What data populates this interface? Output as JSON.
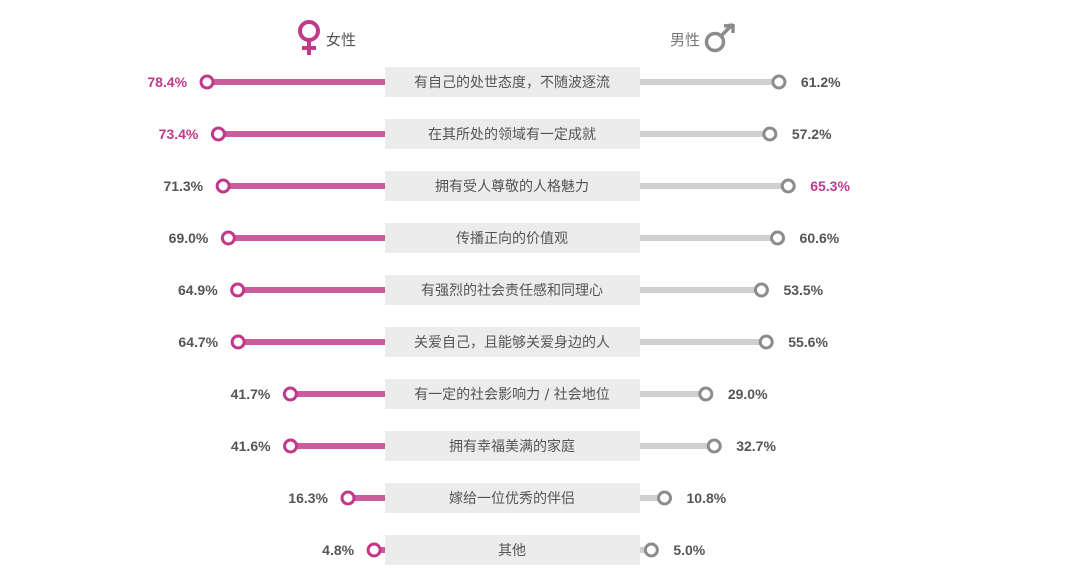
{
  "chart_data": {
    "type": "bar",
    "legend": {
      "female": "女性",
      "male": "男性"
    },
    "categories": [
      "有自己的处世态度，不随波逐流",
      "在其所处的领域有一定成就",
      "拥有受人尊敬的人格魅力",
      "传播正向的价值观",
      "有强烈的社会责任感和同理心",
      "关爱自己，且能够关爱身边的人",
      "有一定的社会影响力 / 社会地位",
      "拥有幸福美满的家庭",
      "嫁给一位优秀的伴侣",
      "其他"
    ],
    "series": [
      {
        "name": "女性",
        "values": [
          78.4,
          73.4,
          71.3,
          69.0,
          64.9,
          64.7,
          41.7,
          41.6,
          16.3,
          4.8
        ],
        "labels": [
          "78.4%",
          "73.4%",
          "71.3%",
          "69.0%",
          "64.9%",
          "64.7%",
          "41.7%",
          "41.6%",
          "16.3%",
          "4.8%"
        ],
        "highlight": [
          true,
          true,
          false,
          false,
          false,
          false,
          false,
          false,
          false,
          false
        ]
      },
      {
        "name": "男性",
        "values": [
          61.2,
          57.2,
          65.3,
          60.6,
          53.5,
          55.6,
          29.0,
          32.7,
          10.8,
          5.0
        ],
        "labels": [
          "61.2%",
          "57.2%",
          "65.3%",
          "60.6%",
          "53.5%",
          "55.6%",
          "29.0%",
          "32.7%",
          "10.8%",
          "5.0%"
        ],
        "highlight": [
          false,
          false,
          true,
          false,
          false,
          false,
          false,
          false,
          false,
          false
        ]
      }
    ],
    "colors": {
      "female": "#c0398a",
      "female_bar": "#cc5ba0",
      "male": "#8c8c8c",
      "male_bar": "#cfcfcf",
      "label_box": "#ececec",
      "text": "#555555"
    }
  }
}
